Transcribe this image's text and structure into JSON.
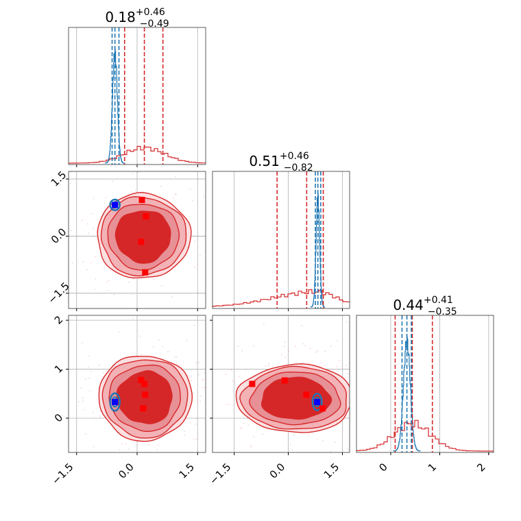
{
  "chart_data": {
    "type": "corner",
    "series": [
      {
        "name": "",
        "color": "#d62728"
      },
      {
        "name": "",
        "color": "#1f77b4"
      }
    ],
    "grid": true,
    "panels": [
      {
        "id": "p00",
        "kind": "histogram",
        "row": 0,
        "col": 0,
        "xlim": [
          -1.7,
          1.7
        ],
        "title": {
          "value": "0.18",
          "upper": "+0.46",
          "lower": "−0.49"
        },
        "red_hist": {
          "center": 0.18,
          "width": 0.5,
          "peak": 0.14
        },
        "blue_hist": {
          "center": -0.55,
          "width": 0.06,
          "peak": 1.0
        },
        "red_quantiles": [
          -0.31,
          0.18,
          0.64
        ],
        "blue_quantiles": [
          -0.62,
          -0.55,
          -0.45
        ]
      },
      {
        "id": "p11",
        "kind": "histogram",
        "row": 1,
        "col": 1,
        "xlim": [
          -2.1,
          1.7
        ],
        "title": {
          "value": "0.51",
          "upper": "+0.46",
          "lower": "−0.82"
        },
        "red_hist": {
          "center": 0.8,
          "width": 0.55,
          "peak": 0.14,
          "skew_left": true
        },
        "blue_hist": {
          "center": 0.82,
          "width": 0.05,
          "peak": 1.0
        },
        "red_quantiles": [
          -0.31,
          0.51,
          0.97
        ],
        "blue_quantiles": [
          0.75,
          0.82,
          0.9
        ]
      },
      {
        "id": "p22",
        "kind": "histogram",
        "row": 2,
        "col": 2,
        "xlim": [
          -0.7,
          2.1
        ],
        "xticks": [
          0,
          1,
          2
        ],
        "title": {
          "value": "0.44",
          "upper": "+0.41",
          "lower": "−0.35"
        },
        "red_hist": {
          "center": 0.44,
          "width": 0.38,
          "peak": 0.25
        },
        "blue_hist": {
          "center": 0.33,
          "width": 0.07,
          "peak": 1.0
        },
        "red_quantiles": [
          0.09,
          0.44,
          0.85
        ],
        "blue_quantiles": [
          0.23,
          0.33,
          0.42
        ]
      },
      {
        "id": "p10",
        "kind": "contour",
        "row": 1,
        "col": 0,
        "xlim": [
          -1.7,
          1.7
        ],
        "ylim": [
          -1.9,
          1.7
        ],
        "yticks": [
          -1.5,
          0.0,
          1.5
        ],
        "red_center": [
          0.15,
          0.0
        ],
        "red_markers": [
          [
            0.12,
            0.95
          ],
          [
            0.22,
            0.52
          ],
          [
            0.1,
            -0.15
          ],
          [
            0.2,
            -0.95
          ]
        ],
        "blue_marker": [
          -0.55,
          0.82
        ],
        "blue_contour": {
          "center": [
            -0.55,
            0.82
          ],
          "rx": 0.12,
          "ry": 0.14
        }
      },
      {
        "id": "p20",
        "kind": "contour",
        "row": 2,
        "col": 0,
        "xlim": [
          -1.7,
          1.7
        ],
        "ylim": [
          -0.7,
          2.1
        ],
        "yticks": [
          0,
          1,
          2
        ],
        "xticks": [
          -1.5,
          0.0,
          1.5
        ],
        "red_center": [
          0.2,
          0.42
        ],
        "red_markers": [
          [
            0.1,
            0.78
          ],
          [
            0.18,
            0.7
          ],
          [
            0.2,
            0.48
          ],
          [
            0.15,
            0.2
          ]
        ],
        "blue_marker": [
          -0.55,
          0.33
        ],
        "blue_contour": {
          "center": [
            -0.55,
            0.33
          ],
          "rx": 0.12,
          "ry": 0.18
        }
      },
      {
        "id": "p21",
        "kind": "contour",
        "row": 2,
        "col": 1,
        "xlim": [
          -2.1,
          1.7
        ],
        "ylim": [
          -0.7,
          2.1
        ],
        "xticks": [
          -1.5,
          0.0,
          1.5
        ],
        "red_center": [
          0.2,
          0.4
        ],
        "red_markers": [
          [
            -1.0,
            0.7
          ],
          [
            -0.1,
            0.77
          ],
          [
            0.5,
            0.48
          ],
          [
            0.95,
            0.2
          ]
        ],
        "blue_marker": [
          0.8,
          0.33
        ],
        "blue_contour": {
          "center": [
            0.8,
            0.33
          ],
          "rx": 0.13,
          "ry": 0.17
        }
      }
    ]
  }
}
